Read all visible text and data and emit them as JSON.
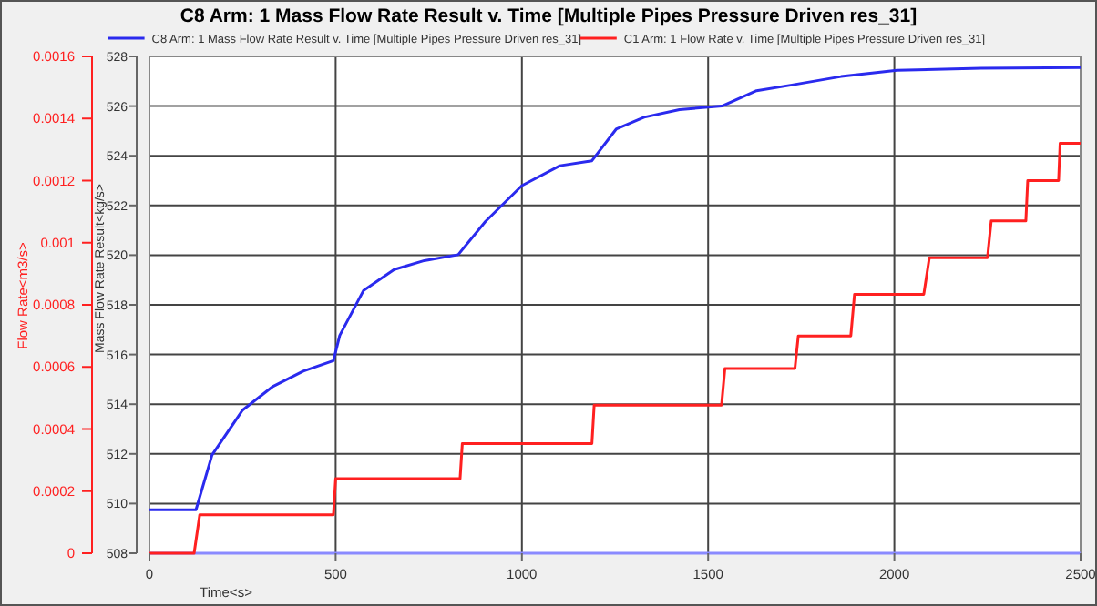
{
  "chart_data": {
    "type": "line",
    "title": "C8 Arm: 1 Mass Flow Rate Result v. Time [Multiple Pipes Pressure Driven res_31]",
    "xlabel": "Time<s>",
    "ylabel": "Mass Flow Rate Result<kg/s>",
    "y2label": "Flow Rate<m3/s>",
    "xlim": [
      0,
      2500
    ],
    "xticks": [
      0,
      500,
      1000,
      1500,
      2000,
      2500
    ],
    "ylim": [
      508,
      528
    ],
    "yticks": [
      508,
      510,
      512,
      514,
      516,
      518,
      520,
      522,
      524,
      526,
      528
    ],
    "y2lim": [
      0,
      0.0016
    ],
    "y2ticks": [
      0,
      0.0002,
      0.0004,
      0.0006,
      0.0008,
      0.001,
      0.0012,
      0.0014,
      0.0016
    ],
    "grid": true,
    "legend": "top",
    "line_style": "solid",
    "series": [
      {
        "name": "C8 Arm: 1 Mass Flow Rate Result v. Time [Multiple Pipes Pressure Driven res_31]",
        "color": "#2a2aee",
        "axis": "y",
        "x": [
          0,
          125,
          168,
          250,
          332,
          413,
          494,
          511,
          575,
          657,
          738,
          829,
          902,
          1000,
          1102,
          1188,
          1253,
          1328,
          1423,
          1537,
          1630,
          1725,
          1857,
          2007,
          2233,
          2500
        ],
        "values": [
          509.75,
          509.75,
          511.95,
          513.76,
          514.72,
          515.33,
          515.75,
          516.77,
          518.58,
          519.42,
          519.78,
          520.02,
          521.35,
          522.8,
          523.6,
          523.8,
          525.07,
          525.55,
          525.86,
          526.0,
          526.62,
          526.85,
          527.19,
          527.44,
          527.52,
          527.55
        ]
      },
      {
        "name": "C1 Arm: 1 Flow Rate v. Time [Multiple Pipes Pressure Driven res_31]",
        "color": "#ff2020",
        "axis": "y2",
        "x": [
          0,
          120,
          135,
          494,
          500,
          834,
          840,
          1188,
          1194,
          1536,
          1545,
          1733,
          1742,
          1883,
          1893,
          2079,
          2094,
          2250,
          2260,
          2353,
          2358,
          2441,
          2445,
          2500
        ],
        "values": [
          0,
          0,
          0.000124,
          0.000124,
          0.00024,
          0.00024,
          0.000353,
          0.000353,
          0.000477,
          0.000477,
          0.000595,
          0.000595,
          0.0007,
          0.0007,
          0.000834,
          0.000834,
          0.000952,
          0.000952,
          0.00107,
          0.00107,
          0.0012,
          0.0012,
          0.00132,
          0.00132
        ]
      }
    ]
  }
}
